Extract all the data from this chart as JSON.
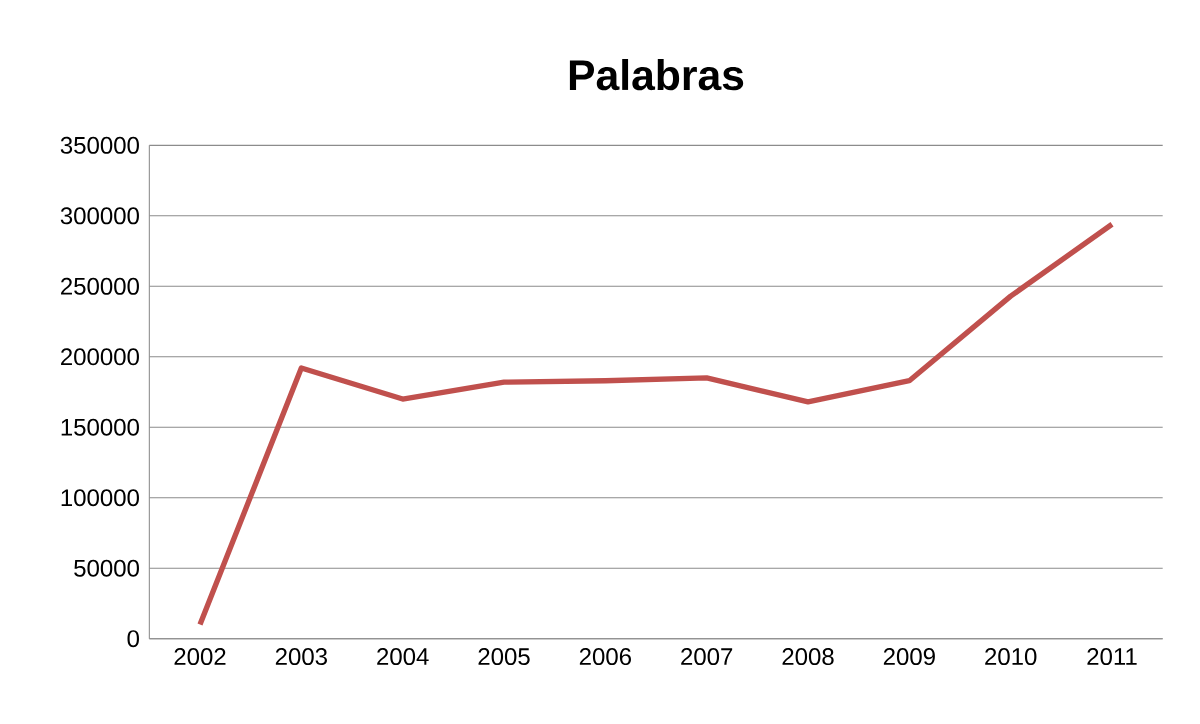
{
  "chart_data": {
    "type": "line",
    "title": "Palabras",
    "categories": [
      "2002",
      "2003",
      "2004",
      "2005",
      "2006",
      "2007",
      "2008",
      "2009",
      "2010",
      "2011"
    ],
    "series": [
      {
        "color": "#c0504d",
        "values": [
          10000,
          192000,
          170000,
          182000,
          183000,
          185000,
          168000,
          183000,
          243000,
          294000
        ]
      }
    ],
    "ylim": [
      0,
      350000
    ],
    "yticks": [
      0,
      50000,
      100000,
      150000,
      200000,
      250000,
      300000,
      350000
    ],
    "grid": "y",
    "legend": false,
    "marker": "none",
    "line_style": "solid"
  }
}
